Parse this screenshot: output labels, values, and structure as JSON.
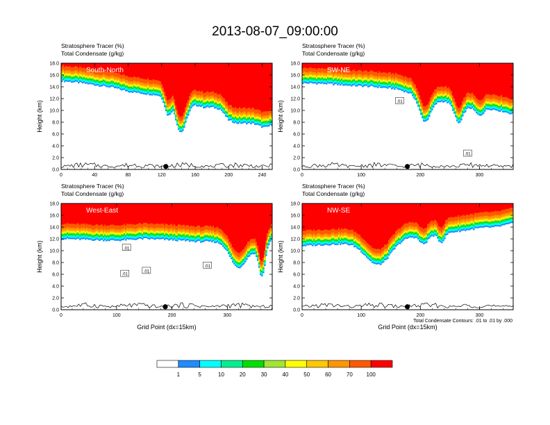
{
  "title": "2013-08-07_09:00:00",
  "contour_note": "Total Condensate Contours: .01 to .01 by .000",
  "colorbar": {
    "levels": [
      "1",
      "5",
      "10",
      "20",
      "30",
      "40",
      "50",
      "60",
      "70",
      "100"
    ],
    "colors": [
      "#ffffff",
      "#1e8cff",
      "#00ffff",
      "#00f090",
      "#00e000",
      "#a0e632",
      "#ffff00",
      "#ffc800",
      "#ff9600",
      "#ff5a00",
      "#ff0000"
    ]
  },
  "chart_data": [
    {
      "type": "heatmap",
      "panel_label": "South-North",
      "header_line1": "Stratosphere Tracer   (%)",
      "header_line2": "Total Condensate   (g/kg)",
      "ylabel": "Height (km)",
      "xlabel": "",
      "xlim": [
        0,
        252
      ],
      "ylim": [
        0,
        18
      ],
      "x_ticks": [
        "0",
        "40",
        "80",
        "120",
        "160",
        "200",
        "240"
      ],
      "y_ticks": [
        "0.0",
        "2.0",
        "4.0",
        "6.0",
        "8.0",
        "10.0",
        "12.0",
        "14.0",
        "16.0",
        "18.0"
      ],
      "marker_x": 125,
      "contour_labels": [],
      "base_profile": [
        [
          0,
          15.0
        ],
        [
          20,
          14.7
        ],
        [
          40,
          14.3
        ],
        [
          60,
          13.9
        ],
        [
          80,
          13.2
        ],
        [
          100,
          12.8
        ],
        [
          120,
          12.5
        ],
        [
          130,
          12.7
        ],
        [
          140,
          12.3
        ],
        [
          150,
          11.6
        ],
        [
          160,
          11.0
        ],
        [
          170,
          10.5
        ],
        [
          180,
          10.5
        ],
        [
          190,
          10.2
        ],
        [
          200,
          8.3
        ],
        [
          210,
          7.8
        ],
        [
          220,
          7.8
        ],
        [
          235,
          7.8
        ],
        [
          252,
          8.0
        ]
      ],
      "dips": [
        [
          170,
          12,
          10.5
        ],
        [
          143,
          10,
          5.7
        ],
        [
          128,
          6,
          8.5
        ],
        [
          243,
          10,
          6.5
        ]
      ]
    },
    {
      "type": "heatmap",
      "panel_label": "SW-NE",
      "header_line1": "Stratosphere Tracer   (%)",
      "header_line2": "Total Condensate   (g/kg)",
      "ylabel": "Height (km)",
      "xlabel": "",
      "xlim": [
        0,
        357
      ],
      "ylim": [
        0,
        18
      ],
      "x_ticks": [
        "0",
        "100",
        "200",
        "300"
      ],
      "y_ticks": [
        "0.0",
        "2.0",
        "4.0",
        "6.0",
        "8.0",
        "10.0",
        "12.0",
        "14.0",
        "16.0",
        "18.0"
      ],
      "marker_x": 178,
      "contour_labels": [
        {
          "x": 165,
          "y": 11.6,
          "text": ".01"
        },
        {
          "x": 280,
          "y": 2.7,
          "text": ".01"
        }
      ],
      "base_profile": [
        [
          0,
          14.6
        ],
        [
          40,
          14.5
        ],
        [
          80,
          14.2
        ],
        [
          120,
          14.0
        ],
        [
          160,
          13.6
        ],
        [
          180,
          13.0
        ],
        [
          200,
          12.5
        ],
        [
          220,
          11.6
        ],
        [
          240,
          11.5
        ],
        [
          260,
          11.0
        ],
        [
          280,
          10.5
        ],
        [
          300,
          10.5
        ],
        [
          320,
          10.2
        ],
        [
          340,
          9.8
        ],
        [
          357,
          9.3
        ]
      ],
      "dips": [
        [
          208,
          14,
          7.5
        ],
        [
          265,
          10,
          7.2
        ],
        [
          300,
          10,
          8.5
        ]
      ]
    },
    {
      "type": "heatmap",
      "panel_label": "West-East",
      "header_line1": "Stratosphere Tracer   (%)",
      "header_line2": "Total Condensate   (g/kg)",
      "ylabel": "Height (km)",
      "xlabel": "Grid Point (dx=15km)",
      "xlim": [
        0,
        381
      ],
      "ylim": [
        0,
        18
      ],
      "x_ticks": [
        "0",
        "100",
        "200",
        "300"
      ],
      "y_ticks": [
        "0.0",
        "2.0",
        "4.0",
        "6.0",
        "8.0",
        "10.0",
        "12.0",
        "14.0",
        "16.0",
        "18.0"
      ],
      "marker_x": 188,
      "contour_labels": [
        {
          "x": 118,
          "y": 10.5,
          "text": ".01"
        },
        {
          "x": 115,
          "y": 6.1,
          "text": ".01"
        },
        {
          "x": 154,
          "y": 6.6,
          "text": ".01"
        },
        {
          "x": 264,
          "y": 7.5,
          "text": ".01"
        }
      ],
      "base_profile": [
        [
          0,
          12.0
        ],
        [
          60,
          11.8
        ],
        [
          100,
          11.7
        ],
        [
          150,
          12.0
        ],
        [
          200,
          11.8
        ],
        [
          250,
          11.5
        ],
        [
          300,
          11.5
        ],
        [
          330,
          11.0
        ],
        [
          350,
          10.0
        ],
        [
          365,
          10.5
        ],
        [
          381,
          12.0
        ]
      ],
      "dips": [
        [
          320,
          22,
          6.5
        ],
        [
          362,
          8,
          5.0
        ]
      ]
    },
    {
      "type": "heatmap",
      "panel_label": "NW-SE",
      "header_line1": "Stratosphere Tracer   (%)",
      "header_line2": "Total Condensate   (g/kg)",
      "ylabel": "Height (km)",
      "xlabel": "Grid Point (dx=15km)",
      "xlim": [
        0,
        357
      ],
      "ylim": [
        0,
        18
      ],
      "x_ticks": [
        "0",
        "100",
        "200",
        "300"
      ],
      "y_ticks": [
        "0.0",
        "2.0",
        "4.0",
        "6.0",
        "8.0",
        "10.0",
        "12.0",
        "14.0",
        "16.0",
        "18.0"
      ],
      "marker_x": 178,
      "contour_labels": [],
      "base_profile": [
        [
          0,
          10.8
        ],
        [
          40,
          11.0
        ],
        [
          80,
          11.2
        ],
        [
          120,
          11.2
        ],
        [
          150,
          11.8
        ],
        [
          180,
          12.3
        ],
        [
          220,
          12.6
        ],
        [
          260,
          13.2
        ],
        [
          300,
          13.8
        ],
        [
          330,
          14.0
        ],
        [
          357,
          14.6
        ]
      ],
      "dips": [
        [
          128,
          30,
          7.0
        ],
        [
          205,
          10,
          10.5
        ],
        [
          235,
          8,
          10.8
        ]
      ]
    }
  ]
}
